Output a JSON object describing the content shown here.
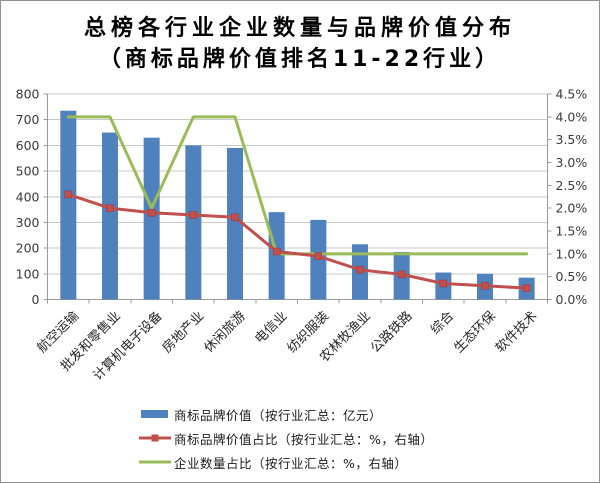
{
  "title": {
    "line1": "总榜各行业企业数量与品牌价值分布",
    "line2": "（商标品牌价值排名11-22行业）"
  },
  "chart_data": {
    "type": "combo-bar-line",
    "categories": [
      "航空运输",
      "批发和零售业",
      "计算机电子设备",
      "房地产业",
      "休闲旅游",
      "电信业",
      "纺织服装",
      "农林牧渔业",
      "公路铁路",
      "综合",
      "生态环保",
      "软件技术"
    ],
    "series": [
      {
        "name": "商标品牌价值（按行业汇总：亿元）",
        "series_type": "bar",
        "axis": "left",
        "color": "#4F81BD",
        "values": [
          735,
          650,
          630,
          600,
          590,
          340,
          310,
          215,
          185,
          105,
          100,
          85
        ]
      },
      {
        "name": "商标品牌价值占比（按行业汇总：%，右轴）",
        "series_type": "line",
        "axis": "right",
        "color": "#C0504D",
        "marker": "square",
        "values": [
          2.3,
          2.0,
          1.9,
          1.85,
          1.8,
          1.05,
          0.95,
          0.65,
          0.55,
          0.35,
          0.3,
          0.25
        ]
      },
      {
        "name": "企业数量占比（按行业汇总：%，右轴）",
        "series_type": "line",
        "axis": "right",
        "color": "#9BBB59",
        "marker": "none",
        "values": [
          4.0,
          4.0,
          2.0,
          4.0,
          4.0,
          1.0,
          1.0,
          1.0,
          1.0,
          1.0,
          1.0,
          1.0
        ]
      }
    ],
    "left_axis": {
      "min": 0,
      "max": 800,
      "step": 100,
      "tick_labels": [
        "800",
        "700",
        "600",
        "500",
        "400",
        "300",
        "200",
        "100",
        "0"
      ]
    },
    "right_axis": {
      "min": 0,
      "max": 4.5,
      "step": 0.5,
      "tick_labels": [
        "4.5%",
        "4.0%",
        "3.5%",
        "3.0%",
        "2.5%",
        "2.0%",
        "1.5%",
        "1.0%",
        "0.5%",
        "0.0%"
      ]
    },
    "grid": true,
    "legend_position": "bottom",
    "style": {
      "bar_color": "#4F81BD",
      "value_line_color": "#C0504D",
      "count_line_color": "#9BBB59",
      "grid_color": "#C9C9C9",
      "axis_color": "#9B9B9B",
      "tick_label_color": "#3A3A3A",
      "category_label_color": "#262626"
    }
  }
}
